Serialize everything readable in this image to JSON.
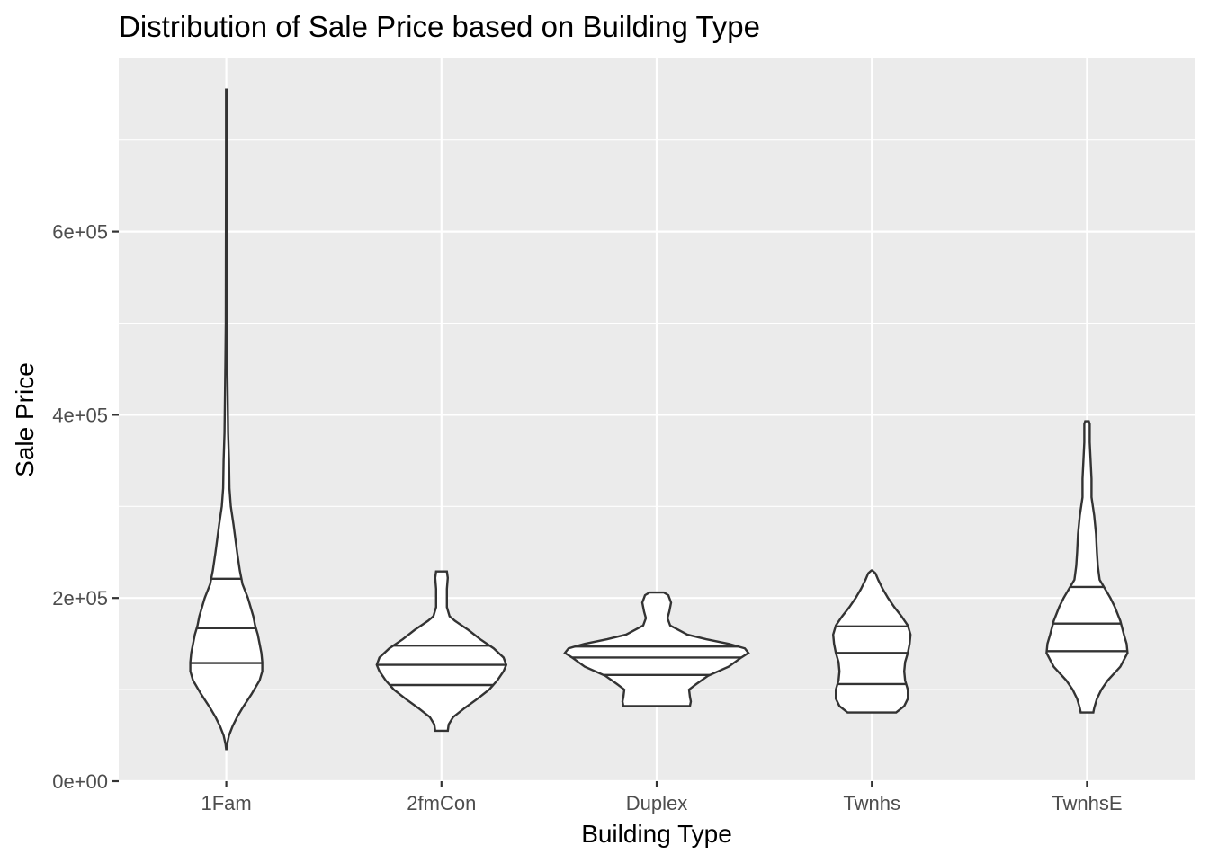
{
  "chart_data": {
    "type": "violin",
    "title": "Distribution of Sale Price based on Building Type",
    "xlabel": "Building Type",
    "ylabel": "Sale Price",
    "categories": [
      "1Fam",
      "2fmCon",
      "Duplex",
      "Twnhs",
      "TwnhsE"
    ],
    "ylim": [
      0,
      790000
    ],
    "yticks": [
      0,
      200000,
      400000,
      600000
    ],
    "ytick_labels": [
      "0e+00",
      "2e+05",
      "4e+05",
      "6e+05"
    ],
    "grid": true,
    "colors": {
      "panel": "#ebebeb",
      "grid": "#ffffff",
      "outline": "#333333",
      "fill": "#ffffff"
    },
    "violins": [
      {
        "category": "1Fam",
        "quantiles": [
          129000,
          167000,
          221000
        ],
        "density": [
          [
            35000,
            0.2
          ],
          [
            40000,
            0.8
          ],
          [
            50000,
            3
          ],
          [
            60000,
            7
          ],
          [
            70000,
            12
          ],
          [
            80000,
            18
          ],
          [
            95000,
            28
          ],
          [
            110000,
            37
          ],
          [
            120000,
            40
          ],
          [
            130000,
            40
          ],
          [
            140000,
            39
          ],
          [
            150000,
            37
          ],
          [
            160000,
            35
          ],
          [
            170000,
            32
          ],
          [
            180000,
            30
          ],
          [
            190000,
            27
          ],
          [
            200000,
            24
          ],
          [
            215000,
            18
          ],
          [
            230000,
            15
          ],
          [
            250000,
            12
          ],
          [
            280000,
            8
          ],
          [
            300000,
            5
          ],
          [
            320000,
            3.5
          ],
          [
            350000,
            3
          ],
          [
            380000,
            2
          ],
          [
            420000,
            1.5
          ],
          [
            460000,
            1
          ],
          [
            500000,
            0.6
          ],
          [
            560000,
            0.5
          ],
          [
            620000,
            0.4
          ],
          [
            680000,
            0.3
          ],
          [
            720000,
            0.3
          ],
          [
            755000,
            0.3
          ]
        ]
      },
      {
        "category": "2fmCon",
        "quantiles": [
          105000,
          127000,
          148000
        ],
        "density": [
          [
            55000,
            7
          ],
          [
            62000,
            8
          ],
          [
            70000,
            13
          ],
          [
            80000,
            26
          ],
          [
            90000,
            40
          ],
          [
            100000,
            53
          ],
          [
            110000,
            62
          ],
          [
            120000,
            69
          ],
          [
            127000,
            72
          ],
          [
            135000,
            69
          ],
          [
            145000,
            58
          ],
          [
            155000,
            43
          ],
          [
            165000,
            30
          ],
          [
            175000,
            15
          ],
          [
            180000,
            9
          ],
          [
            190000,
            6
          ],
          [
            200000,
            6
          ],
          [
            210000,
            6
          ],
          [
            222000,
            7
          ],
          [
            229000,
            6
          ]
        ]
      },
      {
        "category": "Duplex",
        "quantiles": [
          116000,
          135000,
          147000
        ],
        "density": [
          [
            82000,
            37
          ],
          [
            87000,
            38
          ],
          [
            92000,
            37
          ],
          [
            100000,
            36
          ],
          [
            106000,
            44
          ],
          [
            115000,
            57
          ],
          [
            125000,
            80
          ],
          [
            135000,
            94
          ],
          [
            140000,
            102
          ],
          [
            145000,
            98
          ],
          [
            150000,
            80
          ],
          [
            155000,
            55
          ],
          [
            160000,
            34
          ],
          [
            170000,
            15
          ],
          [
            178000,
            12
          ],
          [
            185000,
            14
          ],
          [
            195000,
            16
          ],
          [
            203000,
            13
          ],
          [
            206000,
            8
          ]
        ]
      },
      {
        "category": "Twnhs",
        "quantiles": [
          106000,
          140000,
          169000
        ],
        "density": [
          [
            75000,
            27
          ],
          [
            82000,
            36
          ],
          [
            90000,
            40
          ],
          [
            100000,
            40
          ],
          [
            110000,
            37
          ],
          [
            120000,
            36
          ],
          [
            130000,
            37
          ],
          [
            140000,
            40
          ],
          [
            150000,
            42
          ],
          [
            160000,
            43
          ],
          [
            170000,
            40
          ],
          [
            180000,
            33
          ],
          [
            190000,
            25
          ],
          [
            200000,
            18
          ],
          [
            210000,
            12
          ],
          [
            220000,
            7
          ],
          [
            227000,
            4
          ],
          [
            230000,
            0.5
          ]
        ]
      },
      {
        "category": "TwnhsE",
        "quantiles": [
          142000,
          172000,
          212000
        ],
        "density": [
          [
            75000,
            7
          ],
          [
            80000,
            8
          ],
          [
            90000,
            11
          ],
          [
            100000,
            16
          ],
          [
            110000,
            23
          ],
          [
            125000,
            37
          ],
          [
            140000,
            45
          ],
          [
            150000,
            44
          ],
          [
            160000,
            41
          ],
          [
            175000,
            37
          ],
          [
            190000,
            31
          ],
          [
            200000,
            26
          ],
          [
            210000,
            20
          ],
          [
            220000,
            14
          ],
          [
            235000,
            12
          ],
          [
            250000,
            11
          ],
          [
            270000,
            10
          ],
          [
            290000,
            8
          ],
          [
            310000,
            5
          ],
          [
            330000,
            5
          ],
          [
            350000,
            4
          ],
          [
            370000,
            3
          ],
          [
            390000,
            3
          ],
          [
            393000,
            2
          ]
        ]
      }
    ]
  }
}
